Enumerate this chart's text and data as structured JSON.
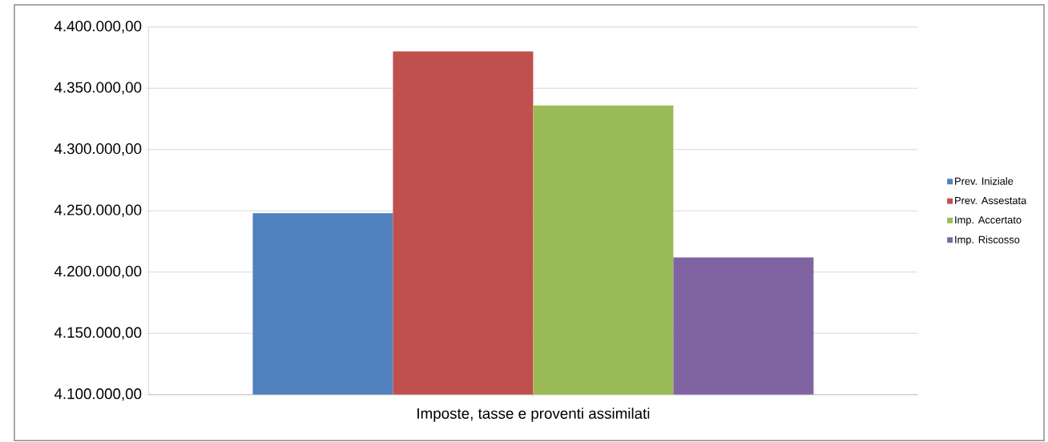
{
  "chart_data": {
    "type": "bar",
    "categories": [
      "Imposte, tasse e proventi assimilati"
    ],
    "series": [
      {
        "name": "Prev. Iniziale",
        "color": "#4f81bd",
        "values": [
          4248000
        ]
      },
      {
        "name": "Prev. Assestata",
        "color": "#c0504d",
        "values": [
          4380000
        ]
      },
      {
        "name": "Imp. Accertato",
        "color": "#9bbb59",
        "values": [
          4336000
        ]
      },
      {
        "name": "Imp. Riscosso",
        "color": "#8064a2",
        "values": [
          4212000
        ]
      }
    ],
    "ylim": [
      4100000,
      4400000
    ],
    "yticks": [
      {
        "value": 4100000,
        "label": "4.100.000,00"
      },
      {
        "value": 4150000,
        "label": "4.150.000,00"
      },
      {
        "value": 4200000,
        "label": "4.200.000,00"
      },
      {
        "value": 4250000,
        "label": "4.250.000,00"
      },
      {
        "value": 4300000,
        "label": "4.300.000,00"
      },
      {
        "value": 4350000,
        "label": "4.350.000,00"
      },
      {
        "value": 4400000,
        "label": "4.400.000,00"
      }
    ],
    "grid": "y",
    "legend": "right"
  }
}
